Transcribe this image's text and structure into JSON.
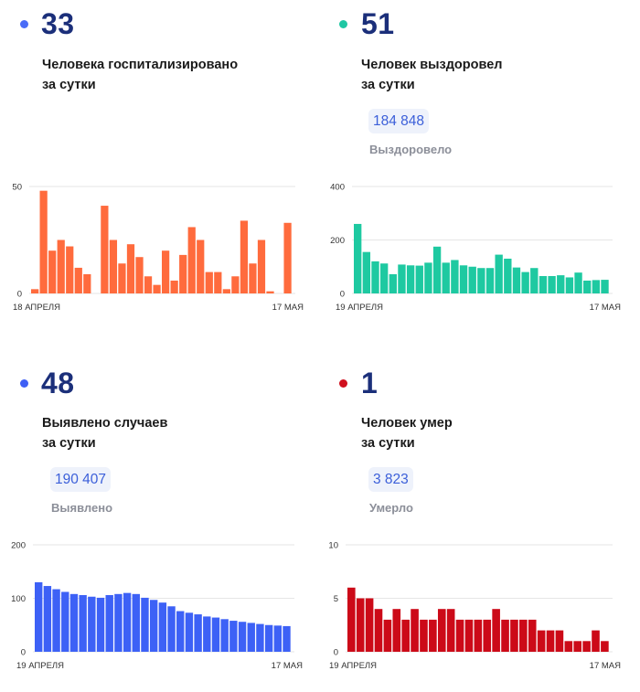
{
  "panels": [
    {
      "value": "33",
      "desc_line1": "Человека госпитализировано",
      "desc_line2": "за сутки",
      "dot_color": "#4a6cf7",
      "color": "#ff6b3d",
      "chart_data": {
        "type": "bar",
        "ylim": [
          0,
          50
        ],
        "yticks": [
          "50",
          "0"
        ],
        "x_start": "18 АПРЕЛЯ",
        "x_end": "17 МАЯ",
        "values": [
          2,
          48,
          20,
          25,
          22,
          12,
          9,
          null,
          41,
          25,
          14,
          23,
          17,
          8,
          4,
          20,
          6,
          18,
          31,
          25,
          10,
          10,
          2,
          8,
          34,
          14,
          25,
          1,
          null,
          33
        ]
      }
    },
    {
      "value": "51",
      "desc_line1": "Человек выздоровел",
      "desc_line2": "за сутки",
      "dot_color": "#1fc7a3",
      "color": "#1ec9a1",
      "total": "184 848",
      "total_label": "Выздоровело",
      "chart_data": {
        "type": "bar",
        "ylim": [
          0,
          400
        ],
        "yticks": [
          "400",
          "200",
          "0"
        ],
        "x_start": "19 АПРЕЛЯ",
        "x_end": "17 МАЯ",
        "values": [
          260,
          155,
          120,
          112,
          72,
          108,
          105,
          104,
          115,
          175,
          115,
          125,
          105,
          100,
          95,
          95,
          145,
          130,
          97,
          80,
          95,
          65,
          65,
          68,
          60,
          78,
          48,
          50,
          51
        ]
      }
    },
    {
      "value": "48",
      "desc_line1": "Выявлено случаев",
      "desc_line2": "за сутки",
      "dot_color": "#3e5ff5",
      "color": "#3d61f6",
      "total": "190 407",
      "total_label": "Выявлено",
      "chart_data": {
        "type": "bar",
        "ylim": [
          0,
          200
        ],
        "yticks": [
          "200",
          "100",
          "0"
        ],
        "x_start": "19 АПРЕЛЯ",
        "x_end": "17 МАЯ",
        "values": [
          130,
          123,
          117,
          112,
          108,
          106,
          103,
          101,
          106,
          108,
          110,
          108,
          101,
          97,
          92,
          85,
          76,
          73,
          70,
          66,
          64,
          61,
          58,
          56,
          54,
          52,
          50,
          49,
          48
        ]
      }
    },
    {
      "value": "1",
      "desc_line1": "Человек умер",
      "desc_line2": "за сутки",
      "dot_color": "#d0101e",
      "color": "#cc0a18",
      "total": "3 823",
      "total_label": "Умерло",
      "chart_data": {
        "type": "bar",
        "ylim": [
          0,
          10
        ],
        "yticks": [
          "10",
          "5",
          "0"
        ],
        "x_start": "19 АПРЕЛЯ",
        "x_end": "17 МАЯ",
        "values": [
          6,
          5,
          5,
          4,
          3,
          4,
          3,
          4,
          3,
          3,
          4,
          4,
          3,
          3,
          3,
          3,
          4,
          3,
          3,
          3,
          3,
          2,
          2,
          2,
          1,
          1,
          1,
          2,
          1
        ]
      }
    }
  ]
}
